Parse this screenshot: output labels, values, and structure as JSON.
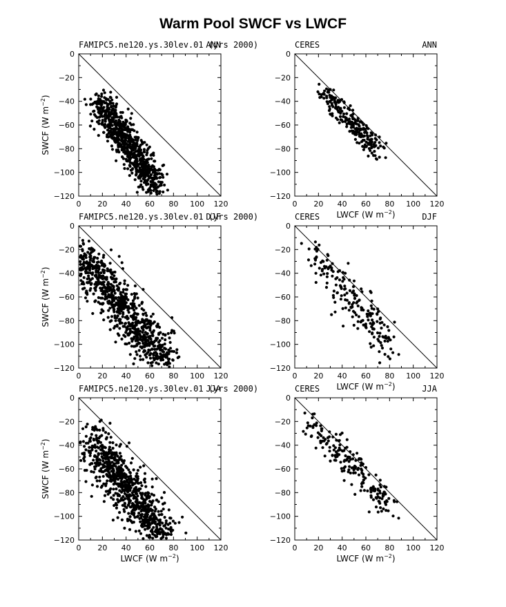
{
  "figure": {
    "title": "Warm Pool SWCF vs LWCF"
  },
  "chart_data": [
    {
      "type": "scatter",
      "left_label": "FAMIPC5.ne120.ys.30lev.01 (yrs 2000)",
      "right_label": "ANN",
      "xlabel": "",
      "ylabel": "SWCF (W m-2)",
      "xlim": [
        0,
        120
      ],
      "ylim": [
        -120,
        0
      ],
      "grid": false,
      "reference_line": "y = -x",
      "cluster": {
        "x_from": 17,
        "x_to": 66,
        "y_from": -40,
        "y_to": -112,
        "spread_x": 5.5,
        "spread_y": 7,
        "n": 780
      }
    },
    {
      "type": "scatter",
      "left_label": "CERES",
      "right_label": "ANN",
      "xlabel": "LWCF (W m-2)",
      "ylabel": "",
      "xlim": [
        0,
        120
      ],
      "ylim": [
        -120,
        0
      ],
      "grid": false,
      "reference_line": "y = -x",
      "cluster": {
        "x_from": 22,
        "x_to": 71,
        "y_from": -30,
        "y_to": -82,
        "spread_x": 3.5,
        "spread_y": 5,
        "n": 230
      }
    },
    {
      "type": "scatter",
      "left_label": "FAMIPC5.ne120.ys.30lev.01 (yrs 2000)",
      "right_label": "DJF",
      "xlabel": "",
      "ylabel": "SWCF (W m-2)",
      "xlim": [
        0,
        120
      ],
      "ylim": [
        -120,
        0
      ],
      "grid": false,
      "reference_line": "y = -x",
      "cluster": {
        "x_from": 4,
        "x_to": 74,
        "y_from": -25,
        "y_to": -117,
        "spread_x": 8,
        "spread_y": 8,
        "n": 850
      }
    },
    {
      "type": "scatter",
      "left_label": "CERES",
      "right_label": "DJF",
      "xlabel": "LWCF (W m-2)",
      "ylabel": "",
      "xlim": [
        0,
        120
      ],
      "ylim": [
        -120,
        0
      ],
      "grid": false,
      "reference_line": "y = -x",
      "cluster": {
        "x_from": 12,
        "x_to": 84,
        "y_from": -22,
        "y_to": -103,
        "spread_x": 5,
        "spread_y": 9,
        "n": 200
      }
    },
    {
      "type": "scatter",
      "left_label": "FAMIPC5.ne120.ys.30lev.01 (yrs 2000)",
      "right_label": "JJA",
      "xlabel": "LWCF (W m-2)",
      "ylabel": "SWCF (W m-2)",
      "xlim": [
        0,
        120
      ],
      "ylim": [
        -120,
        0
      ],
      "grid": false,
      "reference_line": "y = -x",
      "cluster": {
        "x_from": 9,
        "x_to": 72,
        "y_from": -36,
        "y_to": -116,
        "spread_x": 7,
        "spread_y": 10,
        "n": 850
      }
    },
    {
      "type": "scatter",
      "left_label": "CERES",
      "right_label": "JJA",
      "xlabel": "LWCF (W m-2)",
      "ylabel": "",
      "xlim": [
        0,
        120
      ],
      "ylim": [
        -120,
        0
      ],
      "grid": false,
      "reference_line": "y = -x",
      "cluster": {
        "x_from": 11,
        "x_to": 82,
        "y_from": -20,
        "y_to": -93,
        "spread_x": 5,
        "spread_y": 6,
        "n": 200
      }
    }
  ]
}
